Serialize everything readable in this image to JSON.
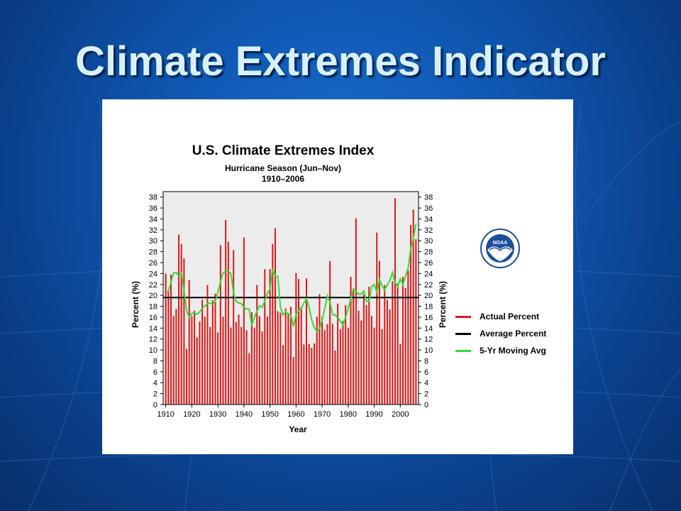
{
  "slide": {
    "title": "Climate Extremes Indicator"
  },
  "colors": {
    "bars": "#dd1a1a",
    "average": "#000000",
    "moving_avg": "#33dd33",
    "plot_bg": "#ececec",
    "logo_blue": "#1d4f9c"
  },
  "logo": {
    "icon": "noaa-logo-icon",
    "text": "NOAA"
  },
  "chart_data": {
    "type": "bar",
    "title": "U.S. Climate Extremes Index",
    "subtitle": "Hurricane Season (Jun–Nov)",
    "subtitle2": "1910–2006",
    "xlabel": "Year",
    "ylabel": "Percent (%)",
    "ylabel_right": "Percent (%)",
    "xlim": [
      1909,
      2007
    ],
    "ylim": [
      0,
      39
    ],
    "yticks": [
      0,
      2,
      4,
      6,
      8,
      10,
      12,
      14,
      16,
      18,
      20,
      22,
      24,
      26,
      28,
      30,
      32,
      34,
      36,
      38
    ],
    "xticks": [
      1910,
      1920,
      1930,
      1940,
      1950,
      1960,
      1970,
      1980,
      1990,
      2000
    ],
    "grid": false,
    "legend_position": "right",
    "x_start": 1910,
    "series": [
      {
        "name": "Actual Percent",
        "type": "bar",
        "values": [
          24,
          21,
          23.8,
          16.2,
          17.5,
          31.1,
          29.4,
          26.8,
          10.2,
          22.8,
          16.2,
          17.2,
          12.3,
          15.2,
          19.2,
          16.1,
          21.9,
          14.2,
          19.1,
          20.3,
          13.2,
          29.2,
          16.1,
          33.8,
          29.8,
          14.1,
          28.3,
          15.1,
          16.5,
          14.2,
          30.6,
          13.6,
          9.4,
          16.9,
          14.1,
          21.9,
          16.2,
          13.4,
          24.8,
          16.1,
          24.8,
          29.4,
          32.3,
          17.1,
          16.8,
          10.9,
          17.6,
          16.8,
          17.9,
          8.7,
          24.1,
          23,
          17.9,
          11,
          23.1,
          11.1,
          10.4,
          11.2,
          16.1,
          20.2,
          16,
          13.6,
          14.7,
          26.3,
          14.8,
          9.9,
          18.5,
          13.8,
          15.3,
          18.2,
          14.1,
          23.4,
          21.3,
          34.1,
          17.2,
          15.4,
          20.2,
          18.2,
          21.6,
          16.2,
          14.1,
          31.5,
          26.3,
          13.8,
          21.9,
          19.2,
          17.4,
          22.6,
          37.8,
          22.2,
          11.1,
          23.4,
          21.3,
          24.6,
          32.9,
          35.7,
          30.3
        ]
      },
      {
        "name": "Average Percent",
        "type": "line",
        "value": 19.6
      },
      {
        "name": "5-Yr Moving Avg",
        "type": "line",
        "values": [
          20.5,
          20.7,
          22.4,
          24.1,
          24.2,
          23.6,
          24.1,
          21.0,
          17.2,
          16.0,
          16.7,
          16.8,
          16.5,
          17.0,
          17.6,
          18.0,
          18.5,
          18.6,
          18.3,
          18.9,
          20.6,
          22.5,
          24.1,
          24.5,
          24.4,
          24.0,
          20.5,
          18.9,
          18.6,
          18.5,
          17.8,
          17.5,
          17.5,
          14.5,
          15.9,
          17.1,
          18.1,
          17.8,
          19.0,
          20.4,
          21.1,
          24.8,
          23.5,
          23.5,
          17.9,
          16.4,
          17.0,
          16.6,
          16.4,
          14.3,
          16.6,
          17.1,
          17.6,
          18.6,
          19.4,
          17.8,
          15.5,
          14.1,
          13.4,
          13.9,
          15.4,
          17.6,
          19.9,
          18.8,
          16.5,
          16.4,
          15.9,
          15.3,
          14.6,
          16.0,
          17.6,
          19.4,
          21.1,
          20.7,
          20.2,
          20.2,
          20.8,
          18.9,
          18.9,
          21.6,
          22.0,
          20.6,
          22.9,
          21.8,
          21.0,
          21.9,
          22.7,
          24.2,
          22.3,
          21.6,
          23.0,
          21.9,
          23.5,
          25.0,
          28.6,
          30.4,
          33.1
        ]
      }
    ]
  }
}
